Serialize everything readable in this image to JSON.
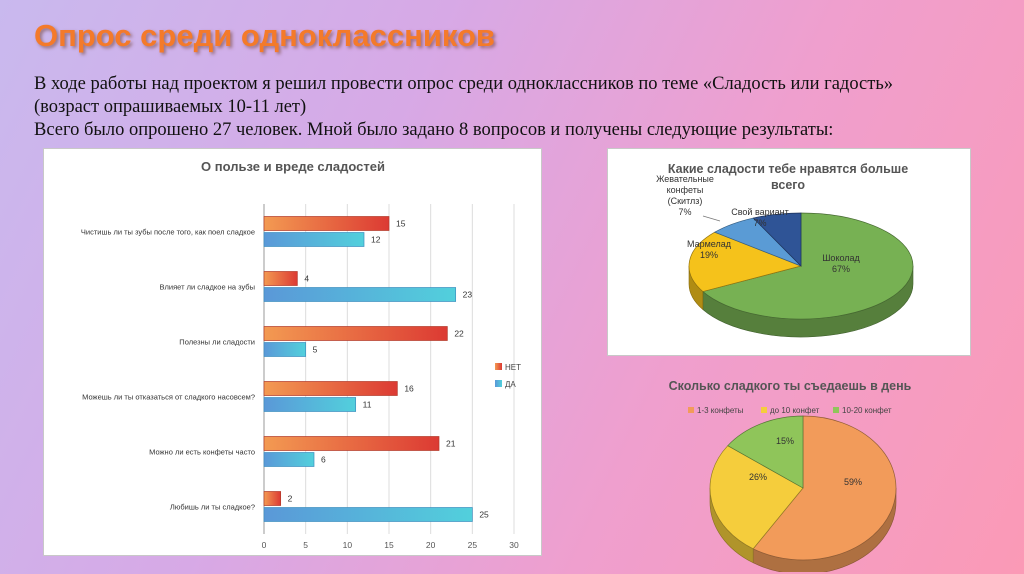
{
  "page": {
    "title": "Опрос среди одноклассников",
    "intro_line1": "В ходе работы над проектом я решил провести опрос среди одноклассников по теме «Сладость или гадость»",
    "intro_line2": "(возраст опрашиваемых 10-11 лет)",
    "intro_line3": "Всего было опрошено 27 человек. Мной было задано 8 вопросов и получены следующие результаты:"
  },
  "chart_data": [
    {
      "type": "bar",
      "orientation": "horizontal",
      "title": "О пользе и вреде сладостей",
      "categories": [
        "Чистишь ли ты зубы после того, как поел сладкое",
        "Влияет ли сладкое на зубы",
        "Полезны ли сладости",
        "Можешь ли ты отказаться от сладкого насовсем?",
        "Можно ли есть конфеты часто",
        "Любишь ли ты сладкое?"
      ],
      "series": [
        {
          "name": "НЕТ",
          "color": "#e0503a",
          "values": [
            15,
            4,
            22,
            16,
            21,
            2
          ]
        },
        {
          "name": "ДА",
          "color": "#4aaed8",
          "values": [
            12,
            23,
            5,
            11,
            6,
            25
          ]
        }
      ],
      "xticks": [
        "0",
        "5",
        "10",
        "15",
        "20",
        "25",
        "30"
      ],
      "xlim": [
        0,
        30
      ],
      "grid": true,
      "legend": "right"
    },
    {
      "type": "pie",
      "style": "3d",
      "title_line1": "Какие сладости тебе нравятся больше",
      "title_line2": "всего",
      "slices": [
        {
          "label": "Шоколад",
          "pct": "67%",
          "value": 67,
          "color": "#77b153"
        },
        {
          "label": "Мармелад",
          "pct": "19%",
          "value": 19,
          "color": "#f5c21b"
        },
        {
          "label_lines": [
            "Жевательные",
            "конфеты",
            "(Скитлз)"
          ],
          "pct": "7%",
          "value": 7,
          "color": "#5a9bd5"
        },
        {
          "label": "Свой вариант",
          "pct": "7%",
          "value": 7,
          "color": "#2f5496"
        }
      ]
    },
    {
      "type": "pie",
      "style": "3d",
      "title": "Сколько сладкого ты съедаешь в день",
      "legend": "top",
      "slices": [
        {
          "label": "1-3 конфеты",
          "pct": "59%",
          "value": 59,
          "color": "#f29b5a"
        },
        {
          "label": "до 10 конфет",
          "pct": "26%",
          "value": 26,
          "color": "#f5cd3c"
        },
        {
          "label": "10-20 конфет",
          "pct": "15%",
          "value": 15,
          "color": "#8fc55a"
        }
      ]
    }
  ]
}
